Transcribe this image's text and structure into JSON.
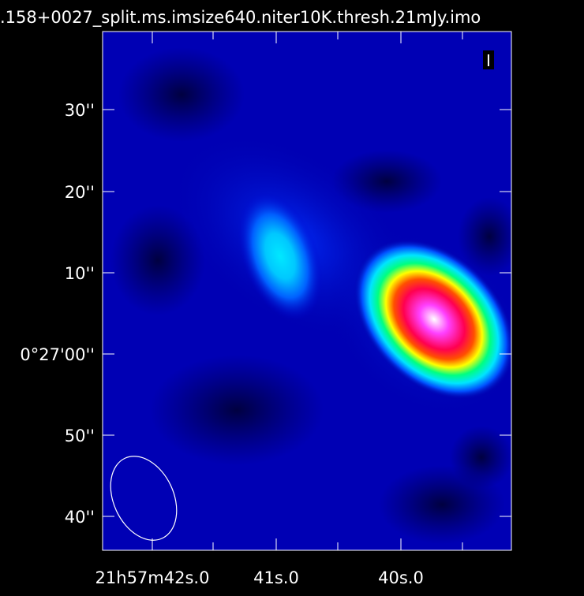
{
  "header": {
    "image_title": ".158+0027_split.ms.imsize640.niter10K.thresh.21mJy.imo"
  },
  "stokes": {
    "label": "I"
  },
  "axes": {
    "dec_ticks": [
      "30''",
      "20''",
      "10''",
      "0°27'00''",
      "50''",
      "40''"
    ],
    "ra_ticks": [
      "21h57m42s.0",
      "41s.0",
      "40s.0"
    ]
  },
  "beam": {
    "shape": "ellipse",
    "color": "#ffffff"
  },
  "display": {
    "colormap": [
      "#000033",
      "#0000aa",
      "#0050ff",
      "#00e5ff",
      "#00ff80",
      "#ffff00",
      "#ff5000",
      "#ff0050",
      "#ff40ff",
      "#ffffff"
    ],
    "background": "#000000",
    "frame_color": "#ffffff"
  }
}
